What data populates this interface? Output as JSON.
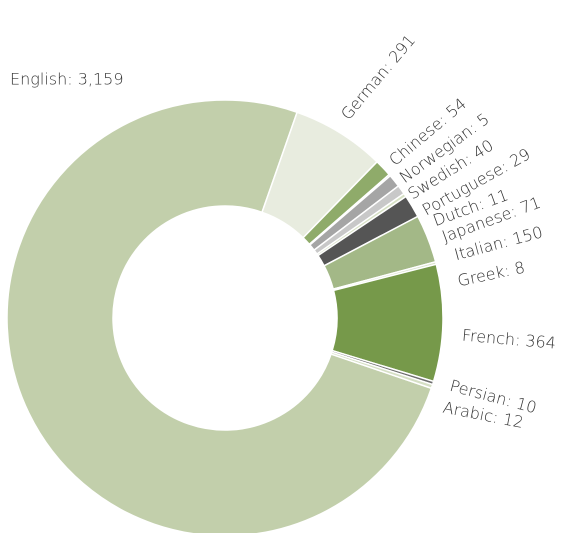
{
  "chart_data": {
    "type": "donut",
    "values": [
      3159,
      291,
      54,
      5,
      40,
      29,
      11,
      71,
      150,
      8,
      364,
      10,
      12
    ],
    "value_labels": [
      "English: 3,159",
      "German: 291",
      "Chinese: 54",
      "Norwegian: 5",
      "Swedish: 40",
      "Portuguese: 29",
      "Dutch: 11",
      "Japanese: 71",
      "Italian: 150",
      "Greek: 8",
      "French: 364",
      "Persian: 10",
      "Arabic: 12"
    ],
    "colors": [
      "#c2cfab",
      "#e8ecdf",
      "#8fab6a",
      "#8a9a78",
      "#a5a5a5",
      "#c8c8c8",
      "#d6e0c4",
      "#555555",
      "#a3b887",
      "#d9e2cb",
      "#76994a",
      "#6e6e6e",
      "#d5dfc4"
    ]
  }
}
